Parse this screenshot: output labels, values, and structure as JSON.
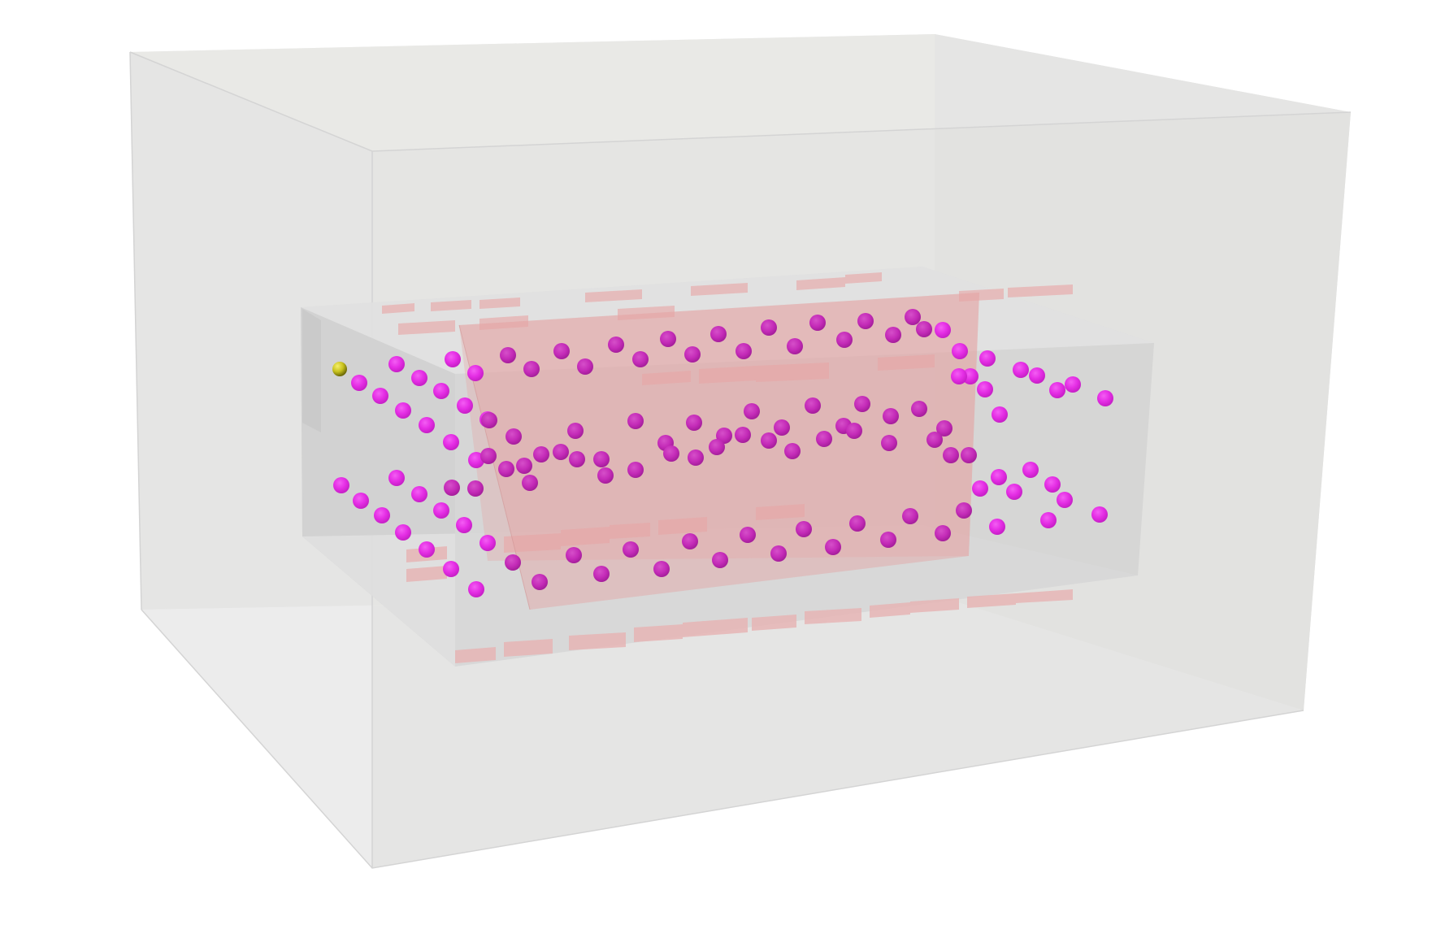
{
  "scene": {
    "background": "#ffffff",
    "colors": {
      "outer_box_face": "#e5e5e4",
      "outer_box_edge": "#d6d6d6",
      "inner_box_face": "#d8d8d8",
      "core_block": "#e6a7a7",
      "pad": "#e7b3b3",
      "bead": "#e52ee5",
      "bead_shadow": "#b81fb8",
      "marker": "#c8c21e"
    },
    "objects": [
      "outer-container-box",
      "inner-chamber-box",
      "core-block",
      "electrode-pad-rows",
      "bead-chain-particles",
      "tracer-particle"
    ]
  }
}
